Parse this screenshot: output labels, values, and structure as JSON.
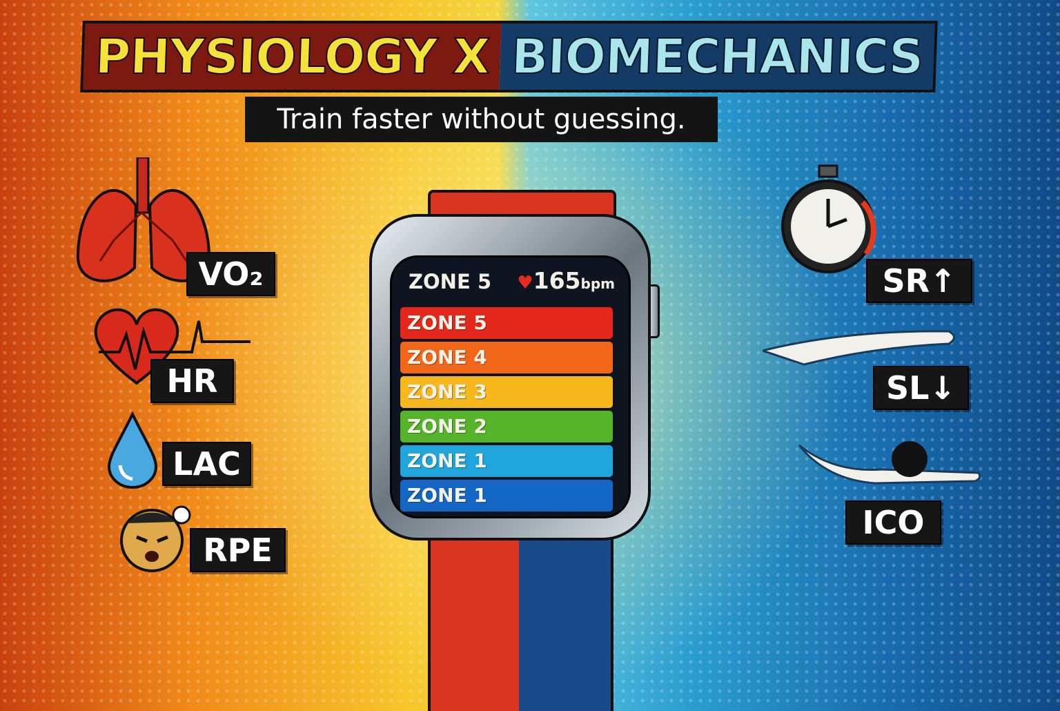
{
  "title": {
    "left": "PHYSIOLOGY X",
    "right": "BIOMECHANICS"
  },
  "subtitle": "Train faster without guessing.",
  "watch": {
    "header_zone": "ZONE 5",
    "heart_rate": "165",
    "heart_rate_unit": "bpm",
    "zones": [
      {
        "label": "ZONE 5",
        "color": "#e3271b"
      },
      {
        "label": "ZONE 4",
        "color": "#f2661a"
      },
      {
        "label": "ZONE 3",
        "color": "#f6b81c"
      },
      {
        "label": "ZONE 2",
        "color": "#55b42a"
      },
      {
        "label": "ZONE 1",
        "color": "#1fa4dc"
      },
      {
        "label": "ZONE 1",
        "color": "#1466c4"
      }
    ],
    "band_colors": {
      "left": "#d83420",
      "right": "#1b4a8a"
    }
  },
  "physiology": [
    {
      "label": "VO₂",
      "icon": "lungs-icon"
    },
    {
      "label": "HR",
      "icon": "heart-ecg-icon"
    },
    {
      "label": "LAC",
      "icon": "drop-icon"
    },
    {
      "label": "RPE",
      "icon": "strained-face-icon"
    }
  ],
  "biomechanics": [
    {
      "label": "SR↑",
      "icon": "stopwatch-icon"
    },
    {
      "label": "SL↓",
      "icon": "arm-stroke-icon"
    },
    {
      "label": "ICO",
      "icon": "swimmer-icon"
    }
  ]
}
